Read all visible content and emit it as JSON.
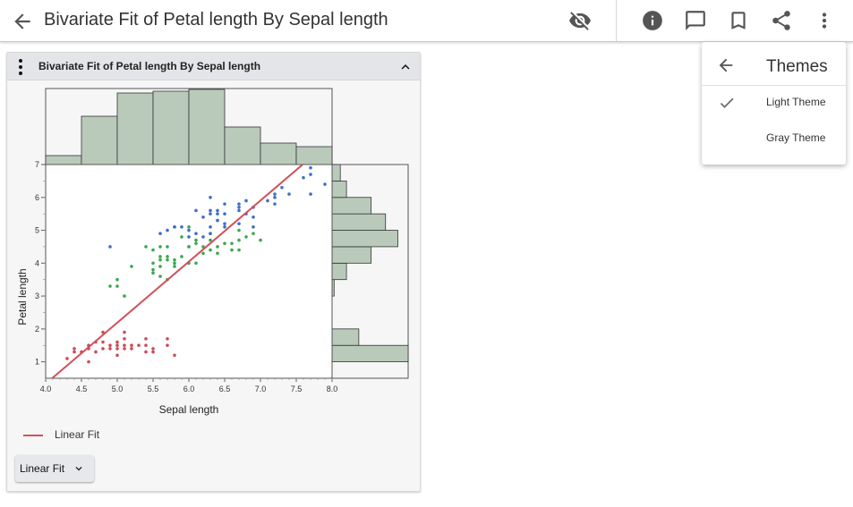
{
  "header": {
    "title": "Bivariate Fit of Petal length By Sepal length",
    "icons": [
      "back-arrow-icon",
      "visibility-off-icon",
      "info-icon",
      "comment-icon",
      "bookmark-icon",
      "share-icon",
      "more-vert-icon"
    ]
  },
  "panel": {
    "title": "Bivariate Fit of Petal length By Sepal length",
    "legend_label": "Linear Fit",
    "fit_button_label": "Linear Fit"
  },
  "themes_menu": {
    "title": "Themes",
    "items": [
      {
        "label": "Light Theme",
        "checked": true
      },
      {
        "label": "Gray Theme",
        "checked": false
      }
    ]
  },
  "colors": {
    "group_red": "#cc4b57",
    "group_green": "#3aa84e",
    "group_blue": "#3d6fcc",
    "fit_line": "#d2505a",
    "histogram_fill": "#b9cabb"
  },
  "chart_data": {
    "type": "scatter",
    "xlabel": "Sepal length",
    "ylabel": "Petal length",
    "xlim": [
      4.0,
      8.0
    ],
    "ylim": [
      0.5,
      7.0
    ],
    "xticks": [
      "4.0",
      "4.5",
      "5.0",
      "5.5",
      "6.0",
      "6.5",
      "7.0",
      "7.5",
      "8.0"
    ],
    "yticks": [
      "1",
      "2",
      "3",
      "4",
      "5",
      "6",
      "7"
    ],
    "series": [
      {
        "color": "#cc4b57",
        "points": [
          [
            4.3,
            1.1
          ],
          [
            4.4,
            1.3
          ],
          [
            4.4,
            1.4
          ],
          [
            4.5,
            1.3
          ],
          [
            4.6,
            1.4
          ],
          [
            4.6,
            1.5
          ],
          [
            4.6,
            1.0
          ],
          [
            4.7,
            1.3
          ],
          [
            4.7,
            1.6
          ],
          [
            4.8,
            1.4
          ],
          [
            4.8,
            1.6
          ],
          [
            4.8,
            1.9
          ],
          [
            4.9,
            1.4
          ],
          [
            4.9,
            1.5
          ],
          [
            5.0,
            1.4
          ],
          [
            5.0,
            1.5
          ],
          [
            5.0,
            1.6
          ],
          [
            5.0,
            1.2
          ],
          [
            5.1,
            1.4
          ],
          [
            5.1,
            1.5
          ],
          [
            5.1,
            1.7
          ],
          [
            5.1,
            1.9
          ],
          [
            5.2,
            1.4
          ],
          [
            5.2,
            1.5
          ],
          [
            5.3,
            1.5
          ],
          [
            5.4,
            1.3
          ],
          [
            5.4,
            1.5
          ],
          [
            5.4,
            1.7
          ],
          [
            5.5,
            1.4
          ],
          [
            5.5,
            1.3
          ],
          [
            5.7,
            1.5
          ],
          [
            5.7,
            1.7
          ],
          [
            5.8,
            1.2
          ]
        ]
      },
      {
        "color": "#3aa84e",
        "points": [
          [
            4.9,
            3.3
          ],
          [
            5.0,
            3.5
          ],
          [
            5.0,
            3.3
          ],
          [
            5.1,
            3.0
          ],
          [
            5.2,
            3.9
          ],
          [
            5.4,
            4.5
          ],
          [
            5.5,
            4.0
          ],
          [
            5.5,
            4.4
          ],
          [
            5.5,
            3.8
          ],
          [
            5.5,
            3.7
          ],
          [
            5.6,
            4.5
          ],
          [
            5.6,
            4.1
          ],
          [
            5.6,
            3.9
          ],
          [
            5.6,
            4.2
          ],
          [
            5.6,
            3.6
          ],
          [
            5.7,
            4.5
          ],
          [
            5.7,
            4.2
          ],
          [
            5.7,
            4.1
          ],
          [
            5.7,
            3.5
          ],
          [
            5.8,
            4.1
          ],
          [
            5.8,
            3.9
          ],
          [
            5.8,
            4.0
          ],
          [
            5.9,
            4.8
          ],
          [
            5.9,
            4.2
          ],
          [
            6.0,
            4.5
          ],
          [
            6.0,
            4.0
          ],
          [
            6.0,
            5.1
          ],
          [
            6.0,
            4.5
          ],
          [
            6.1,
            4.7
          ],
          [
            6.1,
            4.0
          ],
          [
            6.1,
            4.6
          ],
          [
            6.2,
            4.3
          ],
          [
            6.2,
            4.5
          ],
          [
            6.3,
            4.7
          ],
          [
            6.3,
            4.9
          ],
          [
            6.3,
            4.4
          ],
          [
            6.4,
            4.5
          ],
          [
            6.4,
            4.3
          ],
          [
            6.5,
            4.6
          ],
          [
            6.6,
            4.6
          ],
          [
            6.6,
            4.4
          ],
          [
            6.7,
            4.7
          ],
          [
            6.7,
            4.4
          ],
          [
            6.7,
            5.0
          ],
          [
            6.8,
            4.8
          ],
          [
            6.9,
            4.9
          ],
          [
            7.0,
            4.7
          ]
        ]
      },
      {
        "color": "#3d6fcc",
        "points": [
          [
            4.9,
            4.5
          ],
          [
            5.6,
            4.9
          ],
          [
            5.7,
            5.0
          ],
          [
            5.8,
            5.1
          ],
          [
            5.8,
            5.1
          ],
          [
            5.9,
            5.1
          ],
          [
            6.0,
            4.8
          ],
          [
            6.0,
            5.0
          ],
          [
            6.1,
            5.6
          ],
          [
            6.1,
            4.9
          ],
          [
            6.2,
            5.4
          ],
          [
            6.2,
            4.8
          ],
          [
            6.3,
            5.6
          ],
          [
            6.3,
            5.1
          ],
          [
            6.3,
            6.0
          ],
          [
            6.3,
            5.5
          ],
          [
            6.3,
            4.9
          ],
          [
            6.4,
            5.3
          ],
          [
            6.4,
            5.5
          ],
          [
            6.4,
            5.6
          ],
          [
            6.4,
            5.3
          ],
          [
            6.5,
            5.8
          ],
          [
            6.5,
            5.1
          ],
          [
            6.5,
            5.5
          ],
          [
            6.5,
            5.2
          ],
          [
            6.7,
            5.8
          ],
          [
            6.7,
            5.7
          ],
          [
            6.7,
            5.6
          ],
          [
            6.7,
            5.2
          ],
          [
            6.8,
            5.5
          ],
          [
            6.8,
            5.9
          ],
          [
            6.9,
            5.4
          ],
          [
            6.9,
            5.1
          ],
          [
            6.9,
            5.7
          ],
          [
            7.1,
            5.9
          ],
          [
            7.2,
            6.0
          ],
          [
            7.2,
            6.1
          ],
          [
            7.2,
            5.8
          ],
          [
            7.3,
            6.3
          ],
          [
            7.4,
            6.1
          ],
          [
            7.6,
            6.6
          ],
          [
            7.7,
            6.7
          ],
          [
            7.7,
            6.9
          ],
          [
            7.7,
            6.1
          ],
          [
            7.9,
            6.4
          ]
        ]
      }
    ],
    "fit_line": {
      "name": "Linear Fit",
      "slope": 1.858,
      "intercept": -7.101
    },
    "x_histogram": {
      "bin_edges": [
        4.0,
        4.5,
        5.0,
        5.5,
        6.0,
        6.5,
        7.0,
        7.5,
        8.0
      ],
      "counts": [
        5,
        27,
        40,
        41,
        42,
        21,
        12,
        10
      ]
    },
    "y_histogram": {
      "bin_edges": [
        1.0,
        1.5,
        2.0,
        2.5,
        3.0,
        3.5,
        4.0,
        4.5,
        5.0,
        5.5,
        6.0,
        6.5,
        7.0
      ],
      "counts": [
        37,
        13,
        0,
        0,
        1,
        7,
        19,
        32,
        26,
        19,
        7,
        4
      ]
    }
  }
}
